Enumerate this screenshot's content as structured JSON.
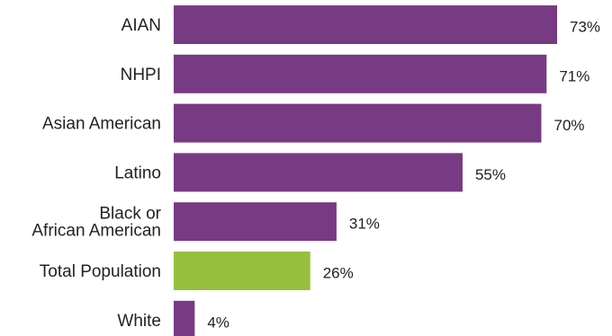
{
  "chart_data": {
    "type": "bar",
    "orientation": "horizontal",
    "categories": [
      [
        "AIAN"
      ],
      [
        "NHPI"
      ],
      [
        "Asian American"
      ],
      [
        "Latino"
      ],
      [
        "Black or",
        "African American"
      ],
      [
        "Total Population"
      ],
      [
        "White"
      ]
    ],
    "values": [
      73,
      71,
      70,
      55,
      31,
      26,
      4
    ],
    "value_labels": [
      "73%",
      "71%",
      "70%",
      "55%",
      "31%",
      "26%",
      "4%"
    ],
    "bar_colors": [
      "#763b82",
      "#763b82",
      "#763b82",
      "#763b82",
      "#763b82",
      "#96bf3f",
      "#763b82"
    ],
    "xlim": [
      0,
      100
    ],
    "title": "",
    "xlabel": "",
    "ylabel": "",
    "grid": false,
    "legend": "none"
  }
}
